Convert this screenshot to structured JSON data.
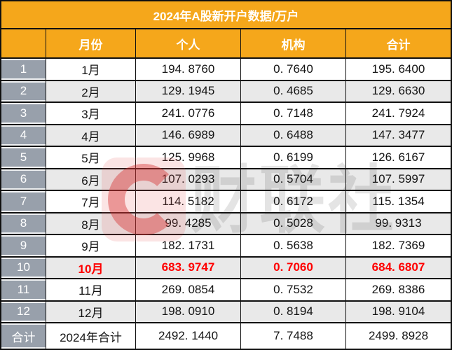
{
  "title": "2024年A股新开户数据/万户",
  "colors": {
    "accent_orange": "#F5A71B",
    "row_number_gray": "#98A0AB",
    "alt_row_gray": "#E9E9E9",
    "highlight_red": "#FF0000",
    "grid_line": "#101010"
  },
  "header": {
    "index": "",
    "month": "月份",
    "individual": "个人",
    "institution": "机构",
    "total": "合计"
  },
  "rows": [
    {
      "index": "1",
      "month": "1月",
      "individual": "194. 8760",
      "institution": "0. 7640",
      "total": "195. 6400",
      "highlight": false
    },
    {
      "index": "2",
      "month": "2月",
      "individual": "129. 1945",
      "institution": "0. 4685",
      "total": "129. 6630",
      "highlight": false
    },
    {
      "index": "3",
      "month": "3月",
      "individual": "241. 0776",
      "institution": "0. 7148",
      "total": "241. 7924",
      "highlight": false
    },
    {
      "index": "4",
      "month": "4月",
      "individual": "146. 6989",
      "institution": "0. 6488",
      "total": "147. 3477",
      "highlight": false
    },
    {
      "index": "5",
      "month": "5月",
      "individual": "125. 9968",
      "institution": "0. 6199",
      "total": "126. 6167",
      "highlight": false
    },
    {
      "index": "6",
      "month": "6月",
      "individual": "107. 0293",
      "institution": "0. 5704",
      "total": "107. 5997",
      "highlight": false
    },
    {
      "index": "7",
      "month": "7月",
      "individual": "114. 5182",
      "institution": "0. 6172",
      "total": "115. 1354",
      "highlight": false
    },
    {
      "index": "8",
      "month": "8月",
      "individual": "99. 4285",
      "institution": "0. 5028",
      "total": "99. 9313",
      "highlight": false
    },
    {
      "index": "9",
      "month": "9月",
      "individual": "182. 1731",
      "institution": "0. 5638",
      "total": "182. 7369",
      "highlight": false
    },
    {
      "index": "10",
      "month": "10月",
      "individual": "683. 9747",
      "institution": "0. 7060",
      "total": "684. 6807",
      "highlight": true
    },
    {
      "index": "11",
      "month": "11月",
      "individual": "269. 0854",
      "institution": "0. 7532",
      "total": "269. 8386",
      "highlight": false
    },
    {
      "index": "12",
      "month": "12月",
      "individual": "198. 0910",
      "institution": "0. 8194",
      "total": "198. 9104",
      "highlight": false
    }
  ],
  "total_row": {
    "index": "合计",
    "month": "2024年合计",
    "individual": "2492. 1440",
    "institution": "7. 7488",
    "total": "2499. 8928"
  },
  "watermark": {
    "logo": "cailianshe-c-logo",
    "text": "财联社"
  },
  "chart_data": {
    "type": "table",
    "title": "2024年A股新开户数据/万户",
    "columns": [
      "月份",
      "个人",
      "机构",
      "合计"
    ],
    "rows": [
      [
        "1月",
        194.876,
        0.764,
        195.64
      ],
      [
        "2月",
        129.1945,
        0.4685,
        129.663
      ],
      [
        "3月",
        241.0776,
        0.7148,
        241.7924
      ],
      [
        "4月",
        146.6989,
        0.6488,
        147.3477
      ],
      [
        "5月",
        125.9968,
        0.6199,
        126.6167
      ],
      [
        "6月",
        107.0293,
        0.5704,
        107.5997
      ],
      [
        "7月",
        114.5182,
        0.6172,
        115.1354
      ],
      [
        "8月",
        99.4285,
        0.5028,
        99.9313
      ],
      [
        "9月",
        182.1731,
        0.5638,
        182.7369
      ],
      [
        "10月",
        683.9747,
        0.706,
        684.6807
      ],
      [
        "11月",
        269.0854,
        0.7532,
        269.8386
      ],
      [
        "12月",
        198.091,
        0.8194,
        198.9104
      ],
      [
        "2024年合计",
        2492.144,
        7.7488,
        2499.8928
      ]
    ],
    "highlighted_row": "10月",
    "units": "万户"
  }
}
